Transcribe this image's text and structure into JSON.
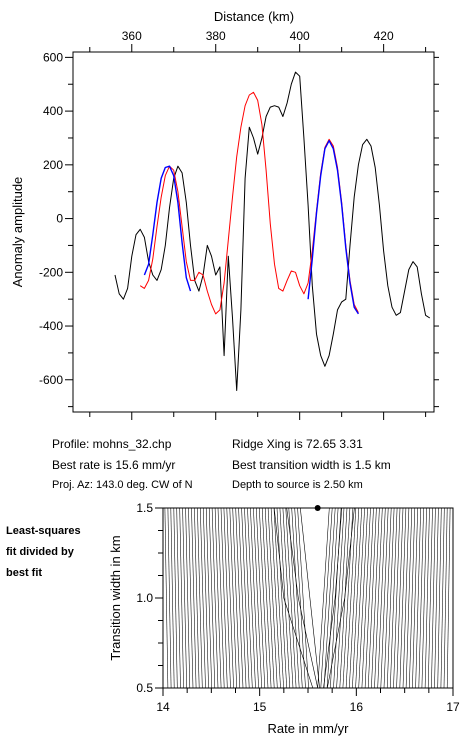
{
  "chart_data": [
    {
      "type": "line",
      "title": "",
      "xlabel": "Distance (km)",
      "ylabel": "Anomaly amplitude",
      "xlim": [
        346,
        432
      ],
      "ylim": [
        -720,
        620
      ],
      "x_ticks": [
        360,
        380,
        400,
        420
      ],
      "y_ticks": [
        600,
        400,
        200,
        0,
        -200,
        -400,
        -600
      ],
      "series": [
        {
          "name": "",
          "color": "#000000",
          "points": [
            [
              356,
              -210
            ],
            [
              357,
              -280
            ],
            [
              358,
              -300
            ],
            [
              359,
              -260
            ],
            [
              360,
              -140
            ],
            [
              361,
              -60
            ],
            [
              362,
              -40
            ],
            [
              363,
              -70
            ],
            [
              364,
              -160
            ],
            [
              365,
              -210
            ],
            [
              366,
              -230
            ],
            [
              367,
              -190
            ],
            [
              368,
              -100
            ],
            [
              369,
              40
            ],
            [
              370,
              150
            ],
            [
              371,
              195
            ],
            [
              372,
              170
            ],
            [
              373,
              60
            ],
            [
              374,
              -100
            ],
            [
              375,
              -230
            ],
            [
              376,
              -270
            ],
            [
              377,
              -210
            ],
            [
              378,
              -100
            ],
            [
              379,
              -140
            ],
            [
              380,
              -210
            ],
            [
              381,
              -180
            ],
            [
              382,
              -510
            ],
            [
              383,
              -140
            ],
            [
              384,
              -370
            ],
            [
              385,
              -640
            ],
            [
              386,
              -340
            ],
            [
              387,
              150
            ],
            [
              388,
              340
            ],
            [
              389,
              300
            ],
            [
              390,
              240
            ],
            [
              391,
              300
            ],
            [
              392,
              380
            ],
            [
              393,
              415
            ],
            [
              394,
              420
            ],
            [
              395,
              415
            ],
            [
              396,
              380
            ],
            [
              397,
              430
            ],
            [
              398,
              500
            ],
            [
              399,
              545
            ],
            [
              400,
              530
            ],
            [
              401,
              300
            ],
            [
              402,
              50
            ],
            [
              403,
              -250
            ],
            [
              404,
              -430
            ],
            [
              405,
              -510
            ],
            [
              406,
              -550
            ],
            [
              407,
              -510
            ],
            [
              408,
              -430
            ],
            [
              409,
              -340
            ],
            [
              410,
              -310
            ],
            [
              411,
              -300
            ],
            [
              412,
              -100
            ],
            [
              413,
              80
            ],
            [
              414,
              200
            ],
            [
              415,
              275
            ],
            [
              416,
              295
            ],
            [
              417,
              270
            ],
            [
              418,
              190
            ],
            [
              419,
              50
            ],
            [
              420,
              -120
            ],
            [
              421,
              -250
            ],
            [
              422,
              -330
            ],
            [
              423,
              -360
            ],
            [
              424,
              -350
            ],
            [
              425,
              -270
            ],
            [
              426,
              -190
            ],
            [
              427,
              -160
            ],
            [
              428,
              -180
            ],
            [
              429,
              -280
            ],
            [
              430,
              -360
            ],
            [
              431,
              -370
            ]
          ]
        },
        {
          "name": "",
          "color": "#ff0000",
          "points": [
            [
              362,
              -250
            ],
            [
              363,
              -260
            ],
            [
              364,
              -230
            ],
            [
              365,
              -150
            ],
            [
              366,
              -30
            ],
            [
              367,
              80
            ],
            [
              368,
              160
            ],
            [
              369,
              195
            ],
            [
              370,
              180
            ],
            [
              371,
              100
            ],
            [
              372,
              -30
            ],
            [
              373,
              -160
            ],
            [
              374,
              -230
            ],
            [
              375,
              -230
            ],
            [
              376,
              -200
            ],
            [
              377,
              -210
            ],
            [
              378,
              -270
            ],
            [
              379,
              -320
            ],
            [
              380,
              -355
            ],
            [
              381,
              -340
            ],
            [
              382,
              -240
            ],
            [
              383,
              -80
            ],
            [
              384,
              80
            ],
            [
              385,
              230
            ],
            [
              386,
              340
            ],
            [
              387,
              420
            ],
            [
              388,
              460
            ],
            [
              389,
              470
            ],
            [
              390,
              440
            ],
            [
              391,
              350
            ],
            [
              392,
              180
            ],
            [
              393,
              -20
            ],
            [
              394,
              -170
            ],
            [
              395,
              -260
            ],
            [
              396,
              -270
            ],
            [
              397,
              -230
            ],
            [
              398,
              -195
            ],
            [
              399,
              -200
            ],
            [
              400,
              -250
            ],
            [
              401,
              -280
            ],
            [
              402,
              -240
            ],
            [
              403,
              -120
            ],
            [
              404,
              30
            ],
            [
              405,
              170
            ],
            [
              406,
              265
            ],
            [
              407,
              295
            ],
            [
              408,
              270
            ],
            [
              409,
              190
            ],
            [
              410,
              60
            ],
            [
              411,
              -100
            ],
            [
              412,
              -230
            ],
            [
              413,
              -320
            ],
            [
              414,
              -350
            ]
          ]
        },
        {
          "name": "",
          "color": "#0000ff",
          "points": [
            [
              363,
              -210
            ],
            [
              364,
              -170
            ],
            [
              365,
              -60
            ],
            [
              366,
              60
            ],
            [
              367,
              150
            ],
            [
              368,
              190
            ],
            [
              369,
              195
            ],
            [
              370,
              160
            ],
            [
              371,
              60
            ],
            [
              372,
              -90
            ],
            [
              373,
              -220
            ],
            [
              374,
              -270
            ]
          ]
        },
        {
          "name": "",
          "color": "#0000ff",
          "points": [
            [
              402,
              -300
            ],
            [
              403,
              -150
            ],
            [
              404,
              20
            ],
            [
              405,
              160
            ],
            [
              406,
              260
            ],
            [
              407,
              290
            ],
            [
              408,
              260
            ],
            [
              409,
              180
            ],
            [
              410,
              50
            ],
            [
              411,
              -110
            ],
            [
              412,
              -240
            ],
            [
              413,
              -330
            ],
            [
              414,
              -355
            ]
          ]
        }
      ]
    },
    {
      "type": "contour",
      "title": "",
      "xlabel": "Rate in mm/yr",
      "ylabel": "Transition width in km",
      "xlim": [
        14,
        17
      ],
      "ylim": [
        0.5,
        1.5
      ],
      "x_ticks": [
        14,
        15,
        16,
        17
      ],
      "y_ticks": [
        0.5,
        1.0,
        1.5
      ],
      "best_fit_point": {
        "x": 15.6,
        "y": 1.5
      }
    }
  ],
  "info": {
    "profile": "Profile: mohns_32.chp",
    "best_rate": "Best rate is 15.6 mm/yr",
    "proj_az": "Proj. Az: 143.0 deg. CW of N",
    "ridge_xing": "Ridge Xing is 72.65 3.31",
    "best_transition": "Best transition width is 1.5 km",
    "depth": "Depth to source is   2.50 km"
  },
  "side_note": [
    "Least-squares",
    "fit divided by",
    "best fit"
  ]
}
